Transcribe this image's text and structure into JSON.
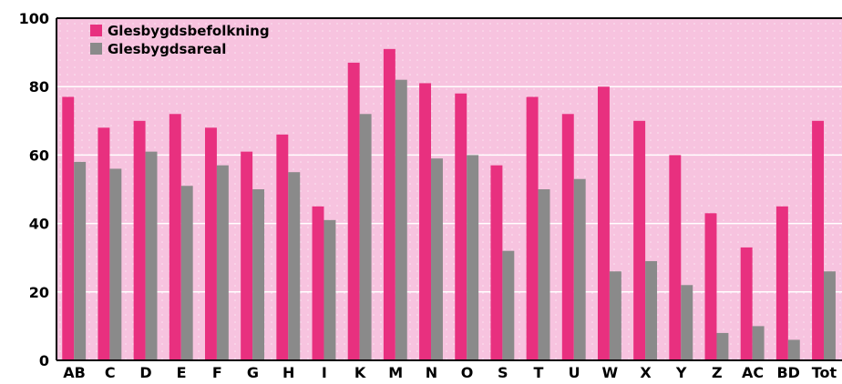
{
  "chart_data": {
    "type": "bar",
    "categories": [
      "AB",
      "C",
      "D",
      "E",
      "F",
      "G",
      "H",
      "I",
      "K",
      "M",
      "N",
      "O",
      "S",
      "T",
      "U",
      "W",
      "X",
      "Y",
      "Z",
      "AC",
      "BD",
      "Tot"
    ],
    "series": [
      {
        "name": "Glesbygdsbefolkning",
        "color": "#e8307f",
        "values": [
          77,
          68,
          70,
          72,
          68,
          61,
          66,
          45,
          87,
          91,
          81,
          78,
          57,
          77,
          72,
          80,
          70,
          60,
          43,
          33,
          45,
          70
        ]
      },
      {
        "name": "Glesbygdsareal",
        "color": "#8a8a8a",
        "values": [
          58,
          56,
          61,
          51,
          57,
          50,
          55,
          41,
          72,
          82,
          59,
          60,
          32,
          50,
          53,
          26,
          29,
          22,
          8,
          10,
          6,
          26
        ]
      }
    ],
    "ylim": [
      0,
      100
    ],
    "yticks": [
      "0",
      "20",
      "40",
      "60",
      "80",
      "100"
    ],
    "grid": true,
    "legend_position": "top-left",
    "plot_background": "#f7c3df",
    "title": "",
    "xlabel": "",
    "ylabel": ""
  }
}
